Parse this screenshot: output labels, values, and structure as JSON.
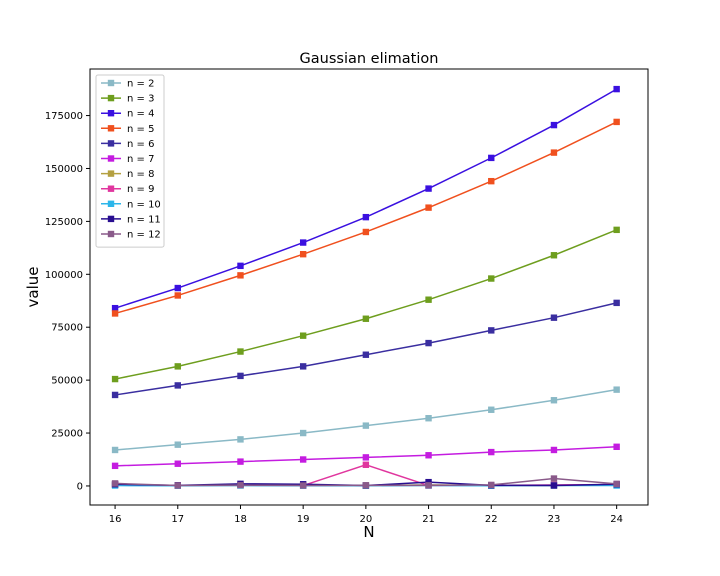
{
  "chart_data": {
    "type": "line",
    "title": "Gaussian elimation",
    "xlabel": "N",
    "ylabel": "value",
    "x": [
      16,
      17,
      18,
      19,
      20,
      21,
      22,
      23,
      24
    ],
    "xlim": [
      15.6,
      24.5
    ],
    "ylim": [
      -9000,
      197000
    ],
    "yticks": [
      0,
      25000,
      50000,
      75000,
      100000,
      125000,
      150000,
      175000
    ],
    "grid": false,
    "legend_position": "top-left",
    "marker": "square",
    "series": [
      {
        "name": "n = 2",
        "color": "#8ab9c6",
        "values": [
          17000,
          19500,
          22000,
          25000,
          28500,
          32000,
          36000,
          40500,
          45500
        ]
      },
      {
        "name": "n = 3",
        "color": "#6e9e1e",
        "values": [
          50500,
          56500,
          63500,
          71000,
          79000,
          88000,
          98000,
          109000,
          121000
        ]
      },
      {
        "name": "n = 4",
        "color": "#3a10e0",
        "values": [
          84000,
          93500,
          104000,
          115000,
          127000,
          140500,
          155000,
          170500,
          187500
        ]
      },
      {
        "name": "n = 5",
        "color": "#f0501e",
        "values": [
          81500,
          90000,
          99500,
          109500,
          120000,
          131500,
          144000,
          157500,
          172000
        ]
      },
      {
        "name": "n = 6",
        "color": "#3a2ea0",
        "values": [
          43000,
          47500,
          52000,
          56500,
          62000,
          67500,
          73500,
          79500,
          86500
        ]
      },
      {
        "name": "n = 7",
        "color": "#c41ce0",
        "values": [
          9500,
          10500,
          11500,
          12500,
          13500,
          14500,
          16000,
          17000,
          18500
        ]
      },
      {
        "name": "n = 8",
        "color": "#b4a040",
        "values": [
          500,
          200,
          300,
          300,
          200,
          500,
          300,
          300,
          400
        ]
      },
      {
        "name": "n = 9",
        "color": "#e0369e",
        "values": [
          600,
          200,
          300,
          200,
          10000,
          200,
          300,
          500,
          600
        ]
      },
      {
        "name": "n = 10",
        "color": "#2cb6ea",
        "values": [
          200,
          100,
          200,
          100,
          100,
          200,
          100,
          200,
          200
        ]
      },
      {
        "name": "n = 11",
        "color": "#280e90",
        "values": [
          800,
          300,
          1000,
          800,
          200,
          1800,
          300,
          200,
          800
        ]
      },
      {
        "name": "n = 12",
        "color": "#8a5a8a",
        "values": [
          1200,
          200,
          400,
          200,
          300,
          300,
          500,
          3500,
          1000
        ]
      }
    ]
  }
}
